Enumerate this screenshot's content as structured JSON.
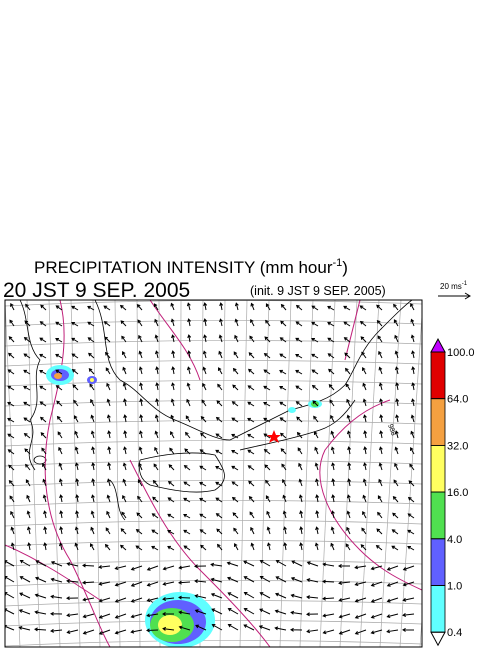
{
  "title": {
    "main": "PRECIPITATION INTENSITY (mm hour",
    "sup": "-1",
    "close": ")"
  },
  "valid_time": "20 JST 9 SEP. 2005",
  "init_time": "(init. 9 JST 9 SEP. 2005)",
  "wind_scale": {
    "main": "20 ms",
    "sup": "-1"
  },
  "contour_label": "988",
  "colorbar": {
    "levels": [
      {
        "value": 100,
        "label": "100.0"
      },
      {
        "value": 64,
        "label": "64.0"
      },
      {
        "value": 32,
        "label": "32.0"
      },
      {
        "value": 16,
        "label": "16.0"
      },
      {
        "value": 4,
        "label": "4.0"
      },
      {
        "value": 1,
        "label": "1.0"
      },
      {
        "value": 0.4,
        "label": "0.4"
      }
    ],
    "colors": [
      "#e00000",
      "#f4a040",
      "#ffff60",
      "#50e050",
      "#6060ff",
      "#60ffff"
    ],
    "over_color": "#c000ff",
    "under_color": "#ffffff"
  }
}
